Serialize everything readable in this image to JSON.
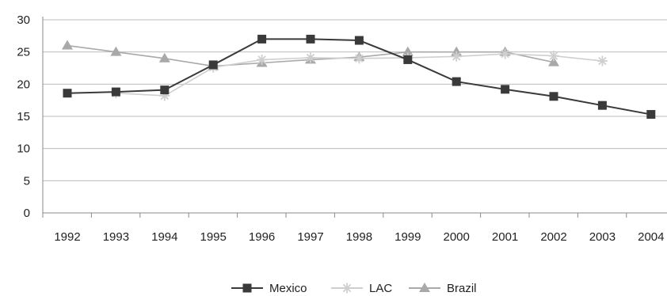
{
  "chart_data": {
    "type": "line",
    "title": "",
    "xlabel": "",
    "ylabel": "",
    "x": [
      "1992",
      "1993",
      "1994",
      "1995",
      "1996",
      "1997",
      "1998",
      "1999",
      "2000",
      "2001",
      "2002",
      "2003",
      "2004"
    ],
    "ylim": [
      0,
      30
    ],
    "yticks": [
      "0",
      "5",
      "10",
      "15",
      "20",
      "25",
      "30"
    ],
    "grid": true,
    "legend_position": "bottom",
    "series": [
      {
        "name": "Mexico",
        "marker": "square",
        "color": "#3a3a3a",
        "values": [
          18.6,
          18.8,
          19.1,
          23.0,
          27.0,
          27.0,
          26.8,
          23.8,
          20.4,
          19.2,
          18.1,
          16.7,
          15.3
        ]
      },
      {
        "name": "LAC",
        "marker": "asterisk",
        "color": "#cfcfcf",
        "values": [
          null,
          18.6,
          18.2,
          22.6,
          23.8,
          24.1,
          24.0,
          24.1,
          24.3,
          24.7,
          24.4,
          23.6,
          null
        ]
      },
      {
        "name": "Brazil",
        "marker": "triangle",
        "color": "#a9a9a9",
        "values": [
          26.0,
          25.0,
          24.0,
          22.8,
          23.3,
          23.8,
          24.2,
          25.0,
          25.0,
          25.0,
          23.4,
          null,
          null
        ]
      }
    ]
  }
}
